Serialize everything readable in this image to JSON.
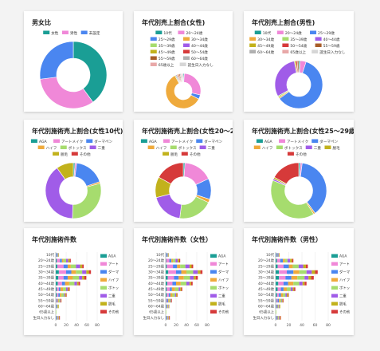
{
  "colors": {
    "teal": "#1a9e95",
    "pink": "#f088d8",
    "blue": "#4a86f0",
    "green": "#a6dc6e",
    "orange": "#efaa3c",
    "purple": "#a05ce8",
    "olive": "#c2b21c",
    "brown": "#a85e2a",
    "red": "#d63a3a",
    "lightgray": "#d6d6d6"
  },
  "cards": [
    {
      "title": "男女比"
    },
    {
      "title": "年代別売上割合(女性)"
    },
    {
      "title": "年代別売上割合(男性)"
    },
    {
      "title": "年代別施術売上割合(女性10代)"
    },
    {
      "title": "年代別施術売上割合(女性20〜24歳)"
    },
    {
      "title": "年代別施術売上割合(女性25〜29歳)"
    },
    {
      "title": "年代別施術件数"
    },
    {
      "title": "年代別施術件数（女性）"
    },
    {
      "title": "年代別施術件数（男性）"
    }
  ],
  "chart_data": [
    {
      "type": "pie",
      "title": "男女比",
      "legend": [
        "女性",
        "男性",
        "未設定"
      ],
      "colors": [
        "teal",
        "pink",
        "blue"
      ],
      "values": [
        40,
        33,
        27
      ]
    },
    {
      "type": "pie",
      "title": "年代別売上割合(女性)",
      "legend": [
        "10代",
        "20〜24歳",
        "25〜29歳",
        "30〜34歳",
        "35〜39歳",
        "40〜44歳",
        "45〜49歳",
        "50〜54歳",
        "55〜59歳",
        "60〜64歳",
        "65歳以上",
        "誕生日入力なし"
      ],
      "colors": [
        "teal",
        "pink",
        "blue",
        "orange",
        "green",
        "purple",
        "olive",
        "red",
        "brown",
        "#b0b0b0",
        "#e8a8a8",
        "lightgray"
      ],
      "values": [
        1,
        28,
        4,
        60,
        1,
        1,
        1,
        1,
        1,
        1,
        1,
        1
      ]
    },
    {
      "type": "pie",
      "title": "年代別売上割合(男性)",
      "legend": [
        "10代",
        "20〜24歳",
        "25〜29歳",
        "30〜34歳",
        "35〜39歳",
        "40〜44歳",
        "45〜49歳",
        "50〜54歳",
        "55〜59歳",
        "60〜64歳",
        "65歳以上",
        "誕生日入力なし"
      ],
      "colors": [
        "teal",
        "pink",
        "blue",
        "orange",
        "green",
        "purple",
        "olive",
        "red",
        "brown",
        "#b0b0b0",
        "#e8a8a8",
        "lightgray"
      ],
      "values": [
        1,
        4,
        60,
        1,
        1,
        30,
        1,
        1,
        1,
        0,
        0,
        0
      ]
    },
    {
      "type": "pie",
      "title": "年代別施術売上割合(女性10代)",
      "legend": [
        "AGA",
        "アートメイク",
        "ダーマペン",
        "ハイフ",
        "ボトックス",
        "二重",
        "脱毛",
        "その他"
      ],
      "colors": [
        "teal",
        "pink",
        "blue",
        "orange",
        "green",
        "purple",
        "olive",
        "red"
      ],
      "values": [
        1,
        1,
        18,
        1,
        30,
        40,
        10,
        0
      ]
    },
    {
      "type": "pie",
      "title": "年代別施術売上割合(女性20〜24歳)",
      "legend": [
        "AGA",
        "アートメイク",
        "ダーマペン",
        "ハイフ",
        "ボトックス",
        "二重",
        "脱毛",
        "その他"
      ],
      "colors": [
        "teal",
        "pink",
        "blue",
        "orange",
        "green",
        "purple",
        "olive",
        "red"
      ],
      "values": [
        1,
        17,
        12,
        2,
        20,
        19,
        12,
        17
      ]
    },
    {
      "type": "pie",
      "title": "年代別施術売上割合(女性25〜29歳)",
      "legend": [
        "AGA",
        "アートメイク",
        "ダーマペン",
        "ハイフ",
        "ボトックス",
        "二重",
        "脱毛",
        "その他"
      ],
      "colors": [
        "teal",
        "pink",
        "blue",
        "orange",
        "green",
        "purple",
        "olive",
        "red"
      ],
      "values": [
        1,
        1,
        38,
        1,
        40,
        1,
        1,
        17
      ]
    },
    {
      "type": "bar",
      "title": "年代別施術件数",
      "orientation": "horizontal",
      "stacked": true,
      "categories": [
        "10代",
        "20〜24歳",
        "25〜29歳",
        "30〜34歳",
        "35〜39歳",
        "40〜44歳",
        "45〜49歳",
        "50〜54歳",
        "55〜59歳",
        "60〜64歳",
        "65歳以上",
        "生日入力なし"
      ],
      "xlim": [
        0,
        80
      ],
      "xticks": [
        0,
        20,
        40,
        60,
        80
      ],
      "series": [
        {
          "name": "AGA",
          "color": "teal",
          "values": [
            1,
            2,
            3,
            6,
            5,
            4,
            2,
            2,
            1,
            1,
            0,
            1
          ]
        },
        {
          "name": "アート",
          "color": "pink",
          "values": [
            1,
            6,
            12,
            14,
            10,
            8,
            4,
            3,
            2,
            1,
            0,
            1
          ]
        },
        {
          "name": "ダーマ",
          "color": "blue",
          "values": [
            1,
            4,
            8,
            10,
            8,
            6,
            3,
            3,
            1,
            1,
            0,
            1
          ]
        },
        {
          "name": "ハイフ",
          "color": "orange",
          "values": [
            0,
            3,
            6,
            9,
            10,
            8,
            5,
            3,
            2,
            1,
            0,
            1
          ]
        },
        {
          "name": "ボトッ",
          "color": "green",
          "values": [
            1,
            5,
            10,
            12,
            12,
            10,
            6,
            5,
            2,
            1,
            1,
            1
          ]
        },
        {
          "name": "二重",
          "color": "purple",
          "values": [
            1,
            4,
            8,
            8,
            6,
            5,
            3,
            2,
            1,
            0,
            0,
            1
          ]
        },
        {
          "name": "脱毛",
          "color": "olive",
          "values": [
            1,
            3,
            4,
            5,
            4,
            3,
            2,
            2,
            1,
            1,
            0,
            1
          ]
        },
        {
          "name": "その他",
          "color": "red",
          "values": [
            0,
            2,
            3,
            4,
            4,
            3,
            2,
            1,
            1,
            0,
            0,
            1
          ]
        }
      ]
    },
    {
      "type": "bar",
      "title": "年代別施術件数（女性）",
      "orientation": "horizontal",
      "stacked": true,
      "categories": [
        "10代",
        "20〜24歳",
        "25〜29歳",
        "30〜34歳",
        "35〜39歳",
        "40〜44歳",
        "45〜49歳",
        "50〜54歳",
        "55〜59歳",
        "60〜64歳",
        "65歳以上",
        "生日入力なし"
      ],
      "xlim": [
        0,
        80
      ],
      "xticks": [
        0,
        20,
        40,
        60,
        80
      ],
      "series": [
        {
          "name": "AGA",
          "color": "teal",
          "values": [
            1,
            1,
            2,
            5,
            4,
            3,
            2,
            2,
            1,
            1,
            0,
            1
          ]
        },
        {
          "name": "アート",
          "color": "pink",
          "values": [
            1,
            6,
            12,
            15,
            12,
            10,
            6,
            4,
            2,
            1,
            0,
            1
          ]
        },
        {
          "name": "ダーマ",
          "color": "blue",
          "values": [
            1,
            4,
            8,
            10,
            9,
            7,
            4,
            3,
            2,
            1,
            0,
            1
          ]
        },
        {
          "name": "ハイフ",
          "color": "orange",
          "values": [
            0,
            3,
            6,
            10,
            10,
            9,
            6,
            4,
            2,
            1,
            0,
            1
          ]
        },
        {
          "name": "ボトッ",
          "color": "green",
          "values": [
            1,
            5,
            10,
            13,
            12,
            11,
            7,
            5,
            2,
            1,
            1,
            1
          ]
        },
        {
          "name": "二重",
          "color": "purple",
          "values": [
            1,
            4,
            8,
            9,
            7,
            6,
            3,
            2,
            1,
            1,
            0,
            1
          ]
        },
        {
          "name": "脱毛",
          "color": "olive",
          "values": [
            1,
            3,
            4,
            5,
            4,
            3,
            2,
            2,
            1,
            1,
            0,
            1
          ]
        },
        {
          "name": "その他",
          "color": "red",
          "values": [
            0,
            2,
            3,
            4,
            4,
            3,
            2,
            1,
            1,
            0,
            0,
            1
          ]
        }
      ]
    },
    {
      "type": "bar",
      "title": "年代別施術件数（男性）",
      "orientation": "horizontal",
      "stacked": true,
      "categories": [
        "10代",
        "20〜24歳",
        "25〜29歳",
        "30〜34歳",
        "35〜39歳",
        "40〜44歳",
        "45〜49歳",
        "50〜54歳",
        "55〜59歳",
        "60〜64歳",
        "65歳以上",
        "生日入力なし"
      ],
      "xlim": [
        0,
        80
      ],
      "xticks": [
        0,
        20,
        40,
        60,
        80
      ],
      "series": [
        {
          "name": "AGA",
          "color": "teal",
          "values": [
            1,
            2,
            3,
            5,
            5,
            4,
            3,
            2,
            1,
            1,
            0,
            1
          ]
        },
        {
          "name": "アート",
          "color": "pink",
          "values": [
            1,
            5,
            9,
            12,
            10,
            8,
            5,
            3,
            2,
            1,
            0,
            1
          ]
        },
        {
          "name": "ダーマ",
          "color": "blue",
          "values": [
            1,
            4,
            8,
            10,
            9,
            7,
            4,
            3,
            2,
            1,
            0,
            1
          ]
        },
        {
          "name": "ハイフ",
          "color": "orange",
          "values": [
            0,
            3,
            6,
            9,
            9,
            8,
            5,
            3,
            2,
            1,
            0,
            1
          ]
        },
        {
          "name": "ボトッ",
          "color": "green",
          "values": [
            1,
            4,
            9,
            11,
            11,
            9,
            6,
            4,
            2,
            1,
            1,
            1
          ]
        },
        {
          "name": "二重",
          "color": "purple",
          "values": [
            1,
            4,
            7,
            8,
            6,
            5,
            3,
            2,
            1,
            1,
            0,
            1
          ]
        },
        {
          "name": "脱毛",
          "color": "olive",
          "values": [
            1,
            3,
            4,
            5,
            4,
            3,
            2,
            2,
            1,
            1,
            0,
            1
          ]
        },
        {
          "name": "その他",
          "color": "red",
          "values": [
            0,
            2,
            3,
            4,
            4,
            3,
            2,
            1,
            1,
            0,
            0,
            1
          ]
        }
      ]
    }
  ]
}
